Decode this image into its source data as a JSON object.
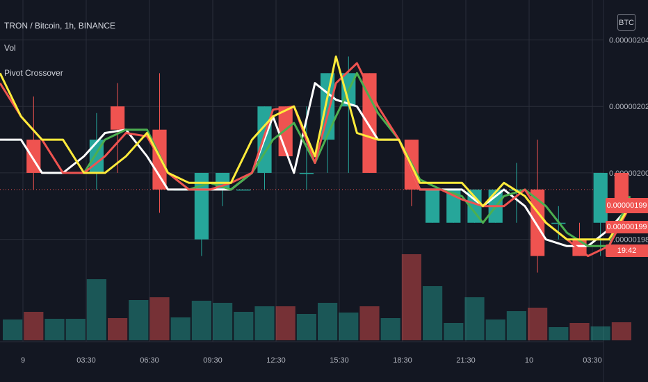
{
  "header": {
    "symbol_line": "TRON / Bitcoin, 1h, BINANCE",
    "indicator_1": "Vol",
    "indicator_2": "Pivot Crossover",
    "currency_button": "BTC"
  },
  "colors": {
    "background": "#131722",
    "up": "#26a69a",
    "down": "#ef5350",
    "white_line": "#ffffff",
    "green_line": "#4caf50",
    "yellow_line": "#ffeb3b",
    "grid": "#2a2e39",
    "axis_text": "#b2b5be"
  },
  "price_tags": [
    {
      "label": "0.00000199",
      "color": "#ef5350"
    },
    {
      "label": "0.00000199",
      "color": "#ef5350"
    },
    {
      "label": "19:42",
      "color": "#ef5350"
    }
  ],
  "chart_data": {
    "type": "candlestick",
    "y_axis": {
      "ticks": [
        "0.00000204",
        "0.00000202",
        "0.00000200",
        "0.00000198"
      ],
      "tick_values": [
        2.04,
        2.02,
        2.0,
        1.98
      ],
      "ylim": [
        1.958,
        2.052
      ]
    },
    "x_axis": {
      "ticks": [
        "9",
        "03:30",
        "06:30",
        "09:30",
        "12:30",
        "15:30",
        "18:30",
        "21:30",
        "10",
        "03:30"
      ],
      "tick_positions": [
        1,
        4,
        7,
        10,
        13,
        16,
        19,
        22,
        25,
        28
      ]
    },
    "candles": [
      {
        "o": 2.01,
        "h": 2.01,
        "l": 2.01,
        "c": 2.01
      },
      {
        "o": 2.01,
        "h": 2.023,
        "l": 1.995,
        "c": 2.0
      },
      {
        "o": 2.0,
        "h": 2.0,
        "l": 2.0,
        "c": 2.0
      },
      {
        "o": 2.0,
        "h": 2.0,
        "l": 2.0,
        "c": 2.0
      },
      {
        "o": 2.0,
        "h": 2.018,
        "l": 1.995,
        "c": 2.01
      },
      {
        "o": 2.02,
        "h": 2.027,
        "l": 2.0,
        "c": 2.013
      },
      {
        "o": 2.013,
        "h": 2.013,
        "l": 2.013,
        "c": 2.013
      },
      {
        "o": 2.013,
        "h": 2.03,
        "l": 1.988,
        "c": 1.995
      },
      {
        "o": 1.995,
        "h": 1.995,
        "l": 1.995,
        "c": 1.995
      },
      {
        "o": 1.98,
        "h": 2.0,
        "l": 1.975,
        "c": 2.0
      },
      {
        "o": 1.995,
        "h": 2.0,
        "l": 1.99,
        "c": 2.0
      },
      {
        "o": 1.995,
        "h": 1.995,
        "l": 1.995,
        "c": 1.995
      },
      {
        "o": 2.0,
        "h": 2.02,
        "l": 1.995,
        "c": 2.02
      },
      {
        "o": 2.02,
        "h": 2.02,
        "l": 2.005,
        "c": 2.005
      },
      {
        "o": 2.0,
        "h": 2.02,
        "l": 1.995,
        "c": 2.0
      },
      {
        "o": 2.01,
        "h": 2.03,
        "l": 2.0,
        "c": 2.03
      },
      {
        "o": 2.02,
        "h": 2.035,
        "l": 2.0,
        "c": 2.03
      },
      {
        "o": 2.03,
        "h": 2.03,
        "l": 2.0,
        "c": 2.0
      },
      {
        "o": 2.01,
        "h": 2.01,
        "l": 2.01,
        "c": 2.01
      },
      {
        "o": 2.01,
        "h": 2.01,
        "l": 1.99,
        "c": 1.995
      },
      {
        "o": 1.985,
        "h": 1.995,
        "l": 1.985,
        "c": 1.995
      },
      {
        "o": 1.985,
        "h": 1.995,
        "l": 1.985,
        "c": 1.995
      },
      {
        "o": 1.985,
        "h": 1.995,
        "l": 1.985,
        "c": 1.995
      },
      {
        "o": 1.985,
        "h": 1.995,
        "l": 1.985,
        "c": 1.995
      },
      {
        "o": 1.995,
        "h": 2.003,
        "l": 1.985,
        "c": 1.995
      },
      {
        "o": 1.995,
        "h": 2.01,
        "l": 1.97,
        "c": 1.975
      },
      {
        "o": 1.985,
        "h": 1.99,
        "l": 1.98,
        "c": 1.985
      },
      {
        "o": 1.98,
        "h": 1.985,
        "l": 1.975,
        "c": 1.975
      },
      {
        "o": 1.985,
        "h": 2.0,
        "l": 1.975,
        "c": 2.0
      },
      {
        "o": 2.0,
        "h": 2.0,
        "l": 1.99,
        "c": 1.99
      }
    ],
    "volume": [
      30,
      41,
      31,
      31,
      88,
      32,
      58,
      62,
      33,
      57,
      54,
      41,
      49,
      49,
      38,
      54,
      40,
      49,
      32,
      124,
      78,
      25,
      62,
      30,
      42,
      47,
      19,
      25,
      20,
      26
    ],
    "vol_max": 124,
    "series": [
      {
        "color": "#ffffff",
        "values": [
          2.01,
          2.01,
          2.0,
          2.0,
          2.005,
          2.012,
          2.013,
          2.005,
          1.995,
          1.995,
          1.995,
          1.995,
          2.0,
          2.017,
          2.0,
          2.027,
          2.022,
          2.02,
          2.01,
          2.01,
          1.995,
          1.995,
          1.995,
          1.99,
          1.995,
          1.99,
          1.98,
          1.978,
          1.978,
          1.983,
          1.99
        ]
      },
      {
        "color": "#4caf50",
        "values": [
          null,
          null,
          null,
          null,
          2.0,
          2.01,
          2.013,
          2.013,
          2.0,
          1.995,
          1.997,
          1.995,
          2.0,
          2.01,
          2.015,
          2.003,
          2.017,
          2.03,
          2.018,
          2.01,
          1.998,
          1.995,
          1.993,
          1.985,
          1.993,
          1.995,
          1.99,
          1.982,
          1.978,
          1.978,
          1.993
        ]
      },
      {
        "color": "#ef5350",
        "values": [
          2.027,
          2.017,
          2.01,
          2.0,
          2.0,
          2.005,
          2.012,
          2.011,
          2.0,
          1.995,
          1.995,
          1.997,
          2.0,
          2.019,
          2.02,
          2.003,
          2.027,
          2.033,
          2.02,
          2.01,
          1.995,
          1.995,
          1.992,
          1.99,
          1.99,
          1.995,
          1.985,
          1.98,
          1.975,
          1.978,
          1.99
        ]
      },
      {
        "color": "#ffeb3b",
        "values": [
          2.03,
          2.017,
          2.01,
          2.01,
          2.0,
          2.0,
          2.005,
          2.012,
          2.0,
          1.997,
          1.997,
          1.997,
          2.01,
          2.017,
          2.02,
          2.005,
          2.035,
          2.012,
          2.01,
          2.01,
          1.997,
          1.997,
          1.997,
          1.99,
          1.997,
          1.993,
          1.985,
          1.98,
          1.98,
          1.98,
          1.99
        ]
      }
    ]
  }
}
